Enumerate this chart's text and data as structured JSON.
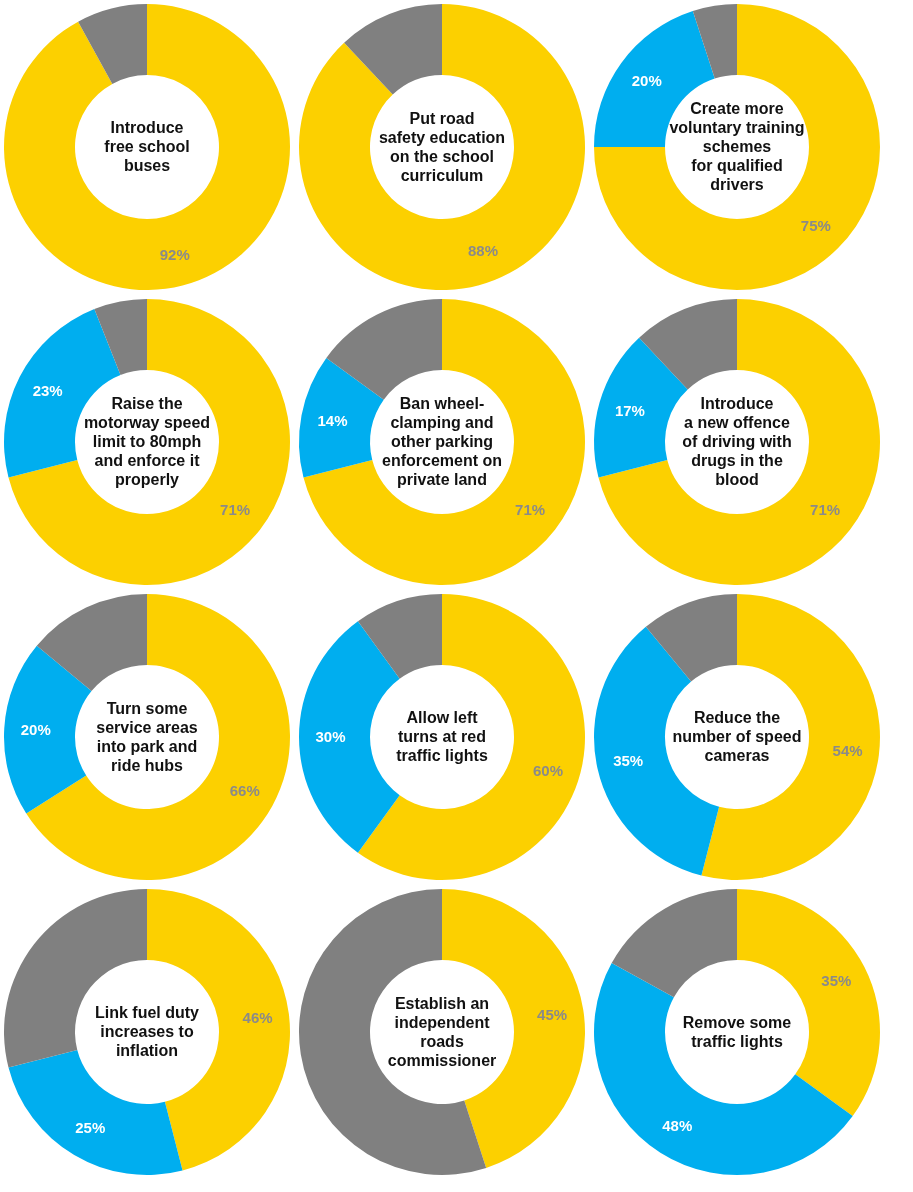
{
  "chart_data": [
    {
      "type": "donut",
      "title": "Introduce\nfree school\nbuses",
      "categories": [
        null,
        null
      ],
      "values": [
        92,
        8
      ],
      "colors": [
        "#fcd000",
        "#808080"
      ],
      "value_labels": [
        "92%",
        null
      ]
    },
    {
      "type": "donut",
      "title": "Put road\nsafety education\non the school\ncurriculum",
      "categories": [
        null,
        null
      ],
      "values": [
        88,
        12
      ],
      "colors": [
        "#fcd000",
        "#808080"
      ],
      "value_labels": [
        "88%",
        null
      ]
    },
    {
      "type": "donut",
      "title": "Create more\nvoluntary training\nschemes\nfor qualified\ndrivers",
      "categories": [
        null,
        null,
        null
      ],
      "values": [
        75,
        20,
        5
      ],
      "colors": [
        "#fcd000",
        "#00aeef",
        "#808080"
      ],
      "value_labels": [
        "75%",
        "20%",
        null
      ]
    },
    {
      "type": "donut",
      "title": "Raise the\nmotorway speed\nlimit to 80mph\nand enforce it\nproperly",
      "categories": [
        null,
        null,
        null
      ],
      "values": [
        71,
        23,
        6
      ],
      "colors": [
        "#fcd000",
        "#00aeef",
        "#808080"
      ],
      "value_labels": [
        "71%",
        "23%",
        null
      ]
    },
    {
      "type": "donut",
      "title": "Ban wheel-\nclamping and\nother parking\nenforcement on\nprivate land",
      "categories": [
        null,
        null,
        null
      ],
      "values": [
        71,
        14,
        15
      ],
      "colors": [
        "#fcd000",
        "#00aeef",
        "#808080"
      ],
      "value_labels": [
        "71%",
        "14%",
        null
      ]
    },
    {
      "type": "donut",
      "title": "Introduce\na new offence\nof driving with\ndrugs in the\nblood",
      "categories": [
        null,
        null,
        null
      ],
      "values": [
        71,
        17,
        12
      ],
      "colors": [
        "#fcd000",
        "#00aeef",
        "#808080"
      ],
      "value_labels": [
        "71%",
        "17%",
        null
      ]
    },
    {
      "type": "donut",
      "title": "Turn some\nservice areas\ninto park and\nride hubs",
      "categories": [
        null,
        null,
        null
      ],
      "values": [
        66,
        20,
        14
      ],
      "colors": [
        "#fcd000",
        "#00aeef",
        "#808080"
      ],
      "value_labels": [
        "66%",
        "20%",
        null
      ]
    },
    {
      "type": "donut",
      "title": "Allow left\nturns at red\ntraffic lights",
      "categories": [
        null,
        null,
        null
      ],
      "values": [
        60,
        30,
        10
      ],
      "colors": [
        "#fcd000",
        "#00aeef",
        "#808080"
      ],
      "value_labels": [
        "60%",
        "30%",
        null
      ]
    },
    {
      "type": "donut",
      "title": "Reduce the\nnumber of speed\ncameras",
      "categories": [
        null,
        null,
        null
      ],
      "values": [
        54,
        35,
        11
      ],
      "colors": [
        "#fcd000",
        "#00aeef",
        "#808080"
      ],
      "value_labels": [
        "54%",
        "35%",
        null
      ]
    },
    {
      "type": "donut",
      "title": "Link fuel duty\nincreases to\ninflation",
      "categories": [
        null,
        null,
        null
      ],
      "values": [
        46,
        25,
        29
      ],
      "colors": [
        "#fcd000",
        "#00aeef",
        "#808080"
      ],
      "value_labels": [
        "46%",
        "25%",
        null
      ]
    },
    {
      "type": "donut",
      "title": "Establish an\nindependent\nroads\ncommissioner",
      "categories": [
        null,
        null
      ],
      "values": [
        45,
        55
      ],
      "colors": [
        "#fcd000",
        "#808080"
      ],
      "value_labels": [
        "45%",
        null
      ]
    },
    {
      "type": "donut",
      "title": "Remove some\ntraffic lights",
      "categories": [
        null,
        null,
        null
      ],
      "values": [
        35,
        48,
        17
      ],
      "colors": [
        "#fcd000",
        "#00aeef",
        "#808080"
      ],
      "value_labels": [
        "35%",
        "48%",
        null
      ]
    }
  ]
}
